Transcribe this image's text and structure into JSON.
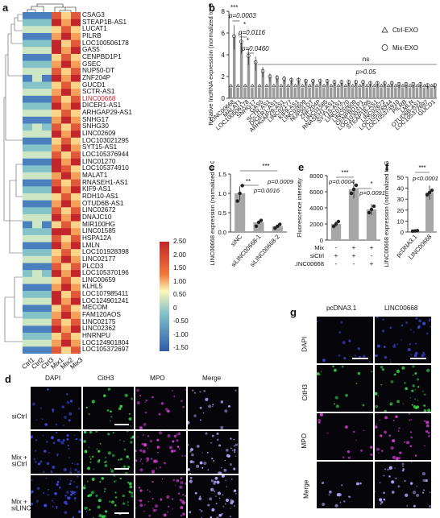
{
  "panels": {
    "a": "a",
    "b": "b",
    "c": "c",
    "d": "d",
    "e": "e",
    "f": "f",
    "g": "g"
  },
  "heatmap": {
    "genes": [
      "CSAG3",
      "STEAP1B-AS1",
      "LUCAT1",
      "PILRB",
      "LOC100506178",
      "GAS5",
      "CENPBD1P1",
      "GSEC",
      "NUP50-DT",
      "ZNF204P",
      "GUCD1",
      "SCTR-AS1",
      "LINC00668",
      "DICER1-AS1",
      "ARHGAP29-AS1",
      "SNHG17",
      "SNHG30",
      "LINC02609",
      "LOC103021295",
      "SYT15-AS1",
      "LOC105376944",
      "LINC01270",
      "LOC105374910",
      "MALAT1",
      "RNASEH1-AS1",
      "KIF9-AS1",
      "RDH10-AS1",
      "OTUD6B-AS1",
      "LINC02672",
      "DNAJC10",
      "MIR100HG",
      "LINC01585",
      "HSPA12A",
      "LMLN",
      "LOC101928398",
      "LINC02177",
      "PLCD3",
      "LOC105370196",
      "LINC00659",
      "KLHL5",
      "LOC107985411",
      "LOC124901241",
      "MECOM",
      "FAM120AOS",
      "LINC02175",
      "LINC02362",
      "HNRNPU",
      "LOC124901804",
      "LOC105372697"
    ],
    "highlight_gene": "LINC00668",
    "columns": [
      "Ctrl1",
      "Ctrl2",
      "Ctrl3",
      "Mix1",
      "Mix2",
      "Mix3"
    ],
    "legend_ticks": [
      "2.50",
      "2.00",
      "1.50",
      "1.00",
      "0.50",
      "0",
      "-0.50",
      "-1.00",
      "-1.50"
    ],
    "colors": {
      "high": "#c0262c",
      "mid": "#fbf6b8",
      "low": "#2f5aa8"
    }
  },
  "chart_data": [
    {
      "panel": "b",
      "type": "scatter",
      "ylabel": "Relative lncRNA expression (normalized to GAPDH)",
      "yticks": [
        "0",
        "2",
        "4",
        "6",
        "8"
      ],
      "ylim": [
        0,
        8
      ],
      "legend": [
        "Ctrl-EXO",
        "Mix-EXO"
      ],
      "categories": [
        "LINC00668",
        "MALAT1",
        "LOC100506178",
        "SNHG17",
        "GAS5",
        "SCTR-AS1",
        "DICER1-AS1",
        "ARHGAP29-AS1",
        "LINC02177",
        "KIF9-AS1",
        "LINC02609",
        "NUP50-DT",
        "ZNF204P",
        "LINC01585",
        "RNASEH1-AS1",
        "SYT15-AS1",
        "LINC01270",
        "LINC02609",
        "CENPBD1P1",
        "LOC103021295",
        "STEAP1B-AS1",
        "LINC02672",
        "LOC105376944",
        "LOC105374910",
        "PILRB",
        "LMLN",
        "OTUD6B-AS1",
        "LOC105372697",
        "GUCD1"
      ],
      "ctrl_values": [
        1,
        1,
        1,
        1,
        1,
        1,
        1,
        1,
        1,
        1,
        1,
        1,
        1,
        1,
        1,
        1,
        1,
        1,
        1,
        1,
        1,
        1,
        1,
        1,
        1,
        1,
        1,
        1,
        1
      ],
      "mix_values": [
        5.6,
        5.1,
        3.8,
        3.2,
        2.4,
        1.9,
        1.8,
        1.7,
        1.6,
        1.6,
        1.5,
        1.5,
        1.5,
        1.5,
        1.4,
        1.4,
        1.4,
        1.4,
        1.4,
        1.3,
        1.3,
        1.3,
        1.3,
        1.2,
        1.2,
        1.2,
        1.2,
        1.1,
        1.1
      ],
      "annotations": [
        "***",
        "p=0.0003",
        "*",
        "p=0.0116",
        "*",
        "p=0.0460",
        "ns",
        "p>0.05"
      ]
    },
    {
      "panel": "c",
      "type": "bar",
      "ylabel": "LINC00668 expression (normalized to GAPDH)",
      "categories": [
        "siNC",
        "siLINC00668-1",
        "siLINC00668-2"
      ],
      "values": [
        1.0,
        0.25,
        0.15
      ],
      "points": [
        [
          0.8,
          1.0,
          1.2
        ],
        [
          0.15,
          0.25,
          0.3
        ],
        [
          0.1,
          0.15,
          0.2
        ]
      ],
      "yticks": [
        "0.0",
        "0.5",
        "1.0",
        "1.5"
      ],
      "ylim": [
        0,
        1.5
      ],
      "annotations": [
        "***",
        "p=0.0009",
        "**",
        "p=0.0016"
      ]
    },
    {
      "panel": "e",
      "type": "bar",
      "ylabel": "Fluorescence intensity",
      "categories": [
        "1",
        "2",
        "3"
      ],
      "values": [
        2000,
        6300,
        3800
      ],
      "points": [
        [
          1700,
          2000,
          2300
        ],
        [
          5800,
          6300,
          6800
        ],
        [
          3400,
          3800,
          4200
        ]
      ],
      "yticks": [
        "0",
        "2000",
        "4000",
        "6000",
        "8000"
      ],
      "ylim": [
        0,
        8000
      ],
      "row_labels": [
        "Mix",
        "siCtrl",
        "siLINC00668"
      ],
      "signs": [
        [
          "-",
          "+",
          "+"
        ],
        [
          "+",
          "+",
          "-"
        ],
        [
          "-",
          "-",
          "+"
        ]
      ],
      "annotations": [
        "***",
        "p=0.0004",
        "*",
        "p=0.0091"
      ]
    },
    {
      "panel": "f",
      "type": "bar",
      "ylabel": "LINC00668 expression (normalized to GAPDH)",
      "categories": [
        "pcDNA3.1",
        "LINC00668"
      ],
      "values": [
        1.0,
        36
      ],
      "points": [
        [
          0.8,
          1,
          1.2
        ],
        [
          34,
          36,
          38
        ]
      ],
      "yticks": [
        "0",
        "10",
        "20",
        "30",
        "40",
        "50"
      ],
      "ylim": [
        0,
        50
      ],
      "annotations": [
        "***",
        "p<0.0001"
      ]
    }
  ],
  "micro_d": {
    "columns": [
      "DAPI",
      "CitH3",
      "MPO",
      "Merge"
    ],
    "rows": [
      "siCtrl",
      "Mix + siCtrl",
      "Mix + siLINC00668"
    ]
  },
  "micro_g": {
    "columns": [
      "pcDNA3.1",
      "LINC00668"
    ],
    "rows": [
      "DAPI",
      "CitH3",
      "MPO",
      "Merge"
    ]
  }
}
